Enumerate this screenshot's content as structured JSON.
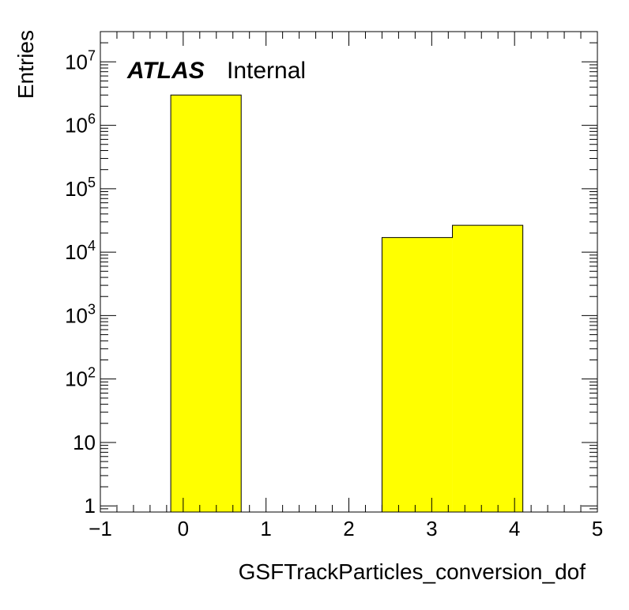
{
  "chart_data": {
    "type": "bar",
    "histogram": true,
    "bin_edges": [
      -0.15,
      0.7,
      1.55,
      2.4,
      3.25,
      4.1
    ],
    "values": [
      3000000,
      0,
      0,
      17000,
      26500
    ],
    "fill_color": "#ffff00",
    "edge_color": "#000000",
    "xlabel": "GSFTrackParticles_conversion_dof",
    "ylabel": "Entries",
    "xlim": [
      -1,
      5
    ],
    "ylim": [
      0.8,
      30000000
    ],
    "y_scale": "log",
    "x_ticks": [
      {
        "value": -1,
        "label": "−1"
      },
      {
        "value": 0,
        "label": "0"
      },
      {
        "value": 1,
        "label": "1"
      },
      {
        "value": 2,
        "label": "2"
      },
      {
        "value": 3,
        "label": "3"
      },
      {
        "value": 4,
        "label": "4"
      },
      {
        "value": 5,
        "label": "5"
      }
    ],
    "y_ticks": [
      {
        "value": 1,
        "base": "1",
        "exp": ""
      },
      {
        "value": 10,
        "base": "10",
        "exp": ""
      },
      {
        "value": 100,
        "base": "10",
        "exp": "2"
      },
      {
        "value": 1000,
        "base": "10",
        "exp": "3"
      },
      {
        "value": 10000,
        "base": "10",
        "exp": "4"
      },
      {
        "value": 100000,
        "base": "10",
        "exp": "5"
      },
      {
        "value": 1000000,
        "base": "10",
        "exp": "6"
      },
      {
        "value": 10000000,
        "base": "10",
        "exp": "7"
      }
    ],
    "grid": false
  },
  "labels": {
    "atlas": "ATLAS",
    "status": "Internal"
  }
}
